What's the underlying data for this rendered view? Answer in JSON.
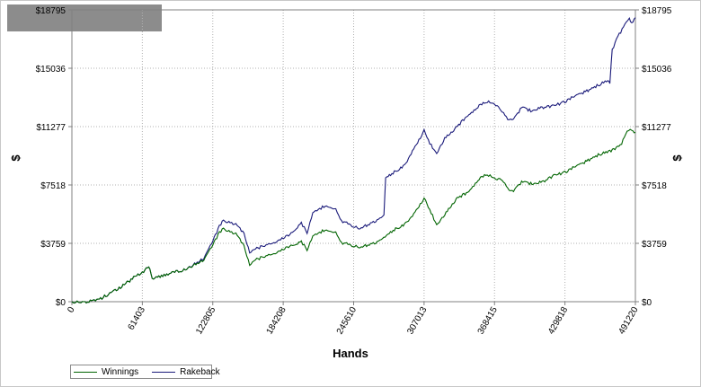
{
  "chart_data": {
    "type": "line",
    "xlabel": "Hands",
    "ylabel_left": "$",
    "ylabel_right": "$",
    "xlim": [
      0,
      491220
    ],
    "ylim": [
      0,
      18795
    ],
    "x_ticks": [
      0,
      61403,
      122805,
      184208,
      245610,
      307013,
      368415,
      429818,
      491220
    ],
    "x_tick_labels": [
      "0",
      "61403",
      "122805",
      "184208",
      "245610",
      "307013",
      "368415",
      "429818",
      "491220"
    ],
    "y_ticks": [
      0,
      3759,
      7518,
      11277,
      15036,
      18795
    ],
    "y_tick_labels": [
      "$0",
      "$3759",
      "$7518",
      "$11277",
      "$15036",
      "$18795"
    ],
    "grid": true,
    "legend_position": "bottom-left",
    "series": [
      {
        "name": "Winnings",
        "color": "#006400",
        "points": [
          [
            0,
            0
          ],
          [
            8000,
            -50
          ],
          [
            16000,
            30
          ],
          [
            25000,
            200
          ],
          [
            40000,
            800
          ],
          [
            55000,
            1600
          ],
          [
            61403,
            1850
          ],
          [
            67000,
            2300
          ],
          [
            70000,
            1500
          ],
          [
            85000,
            1800
          ],
          [
            100000,
            2100
          ],
          [
            115000,
            2700
          ],
          [
            125000,
            4000
          ],
          [
            131000,
            4700
          ],
          [
            138000,
            4500
          ],
          [
            143000,
            4400
          ],
          [
            150000,
            3600
          ],
          [
            155000,
            2400
          ],
          [
            160000,
            2700
          ],
          [
            175000,
            3100
          ],
          [
            190000,
            3550
          ],
          [
            200000,
            3900
          ],
          [
            205000,
            3300
          ],
          [
            210000,
            4300
          ],
          [
            222000,
            4650
          ],
          [
            230000,
            4500
          ],
          [
            235000,
            3800
          ],
          [
            250000,
            3500
          ],
          [
            265000,
            3800
          ],
          [
            280000,
            4600
          ],
          [
            290000,
            5000
          ],
          [
            298000,
            5600
          ],
          [
            307013,
            6650
          ],
          [
            312000,
            5900
          ],
          [
            318000,
            5000
          ],
          [
            325000,
            5600
          ],
          [
            335000,
            6600
          ],
          [
            345000,
            7050
          ],
          [
            355000,
            7900
          ],
          [
            362000,
            8200
          ],
          [
            368415,
            8000
          ],
          [
            375000,
            7800
          ],
          [
            380000,
            7300
          ],
          [
            385000,
            7100
          ],
          [
            392000,
            7700
          ],
          [
            400000,
            7600
          ],
          [
            410000,
            7700
          ],
          [
            420000,
            8100
          ],
          [
            429818,
            8350
          ],
          [
            440000,
            8750
          ],
          [
            450000,
            9100
          ],
          [
            460000,
            9500
          ],
          [
            470000,
            9700
          ],
          [
            478000,
            10050
          ],
          [
            484000,
            10900
          ],
          [
            488000,
            11100
          ],
          [
            491220,
            10900
          ]
        ]
      },
      {
        "name": "Rakeback",
        "color": "#1a1a7a",
        "points": [
          [
            0,
            0
          ],
          [
            8000,
            -50
          ],
          [
            16000,
            30
          ],
          [
            25000,
            200
          ],
          [
            40000,
            800
          ],
          [
            55000,
            1600
          ],
          [
            61403,
            1850
          ],
          [
            67000,
            2300
          ],
          [
            70000,
            1500
          ],
          [
            85000,
            1800
          ],
          [
            100000,
            2100
          ],
          [
            115000,
            2800
          ],
          [
            125000,
            4300
          ],
          [
            131000,
            5200
          ],
          [
            138000,
            5100
          ],
          [
            143000,
            5000
          ],
          [
            150000,
            4400
          ],
          [
            155000,
            3200
          ],
          [
            160000,
            3400
          ],
          [
            175000,
            3800
          ],
          [
            190000,
            4300
          ],
          [
            200000,
            5100
          ],
          [
            205000,
            4400
          ],
          [
            210000,
            5800
          ],
          [
            222000,
            6200
          ],
          [
            230000,
            6000
          ],
          [
            235000,
            5200
          ],
          [
            250000,
            4700
          ],
          [
            265000,
            5200
          ],
          [
            272000,
            5600
          ],
          [
            273500,
            8000
          ],
          [
            280000,
            8300
          ],
          [
            290000,
            8800
          ],
          [
            298000,
            9800
          ],
          [
            307013,
            11000
          ],
          [
            312000,
            10200
          ],
          [
            318000,
            9600
          ],
          [
            325000,
            10500
          ],
          [
            335000,
            11200
          ],
          [
            345000,
            12000
          ],
          [
            355000,
            12600
          ],
          [
            362000,
            12900
          ],
          [
            368415,
            12800
          ],
          [
            375000,
            12200
          ],
          [
            380000,
            11800
          ],
          [
            385000,
            11700
          ],
          [
            392000,
            12500
          ],
          [
            400000,
            12300
          ],
          [
            410000,
            12500
          ],
          [
            420000,
            12600
          ],
          [
            429818,
            12900
          ],
          [
            440000,
            13300
          ],
          [
            450000,
            13600
          ],
          [
            460000,
            14000
          ],
          [
            466000,
            14200
          ],
          [
            469000,
            14100
          ],
          [
            471000,
            16200
          ],
          [
            476000,
            17100
          ],
          [
            482000,
            17800
          ],
          [
            486000,
            18200
          ],
          [
            488000,
            18000
          ],
          [
            491220,
            18300
          ]
        ]
      }
    ]
  }
}
